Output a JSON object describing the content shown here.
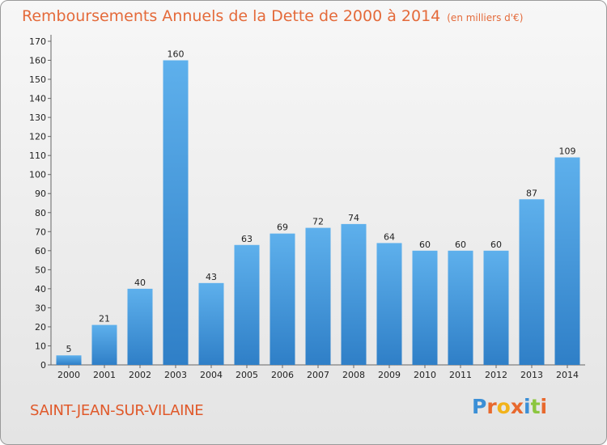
{
  "chart_data": {
    "type": "bar",
    "title": "Remboursements Annuels de la Dette de 2000 à 2014",
    "unit_note": "(en milliers d'€)",
    "categories": [
      "2000",
      "2001",
      "2002",
      "2003",
      "2004",
      "2005",
      "2006",
      "2007",
      "2008",
      "2009",
      "2010",
      "2011",
      "2012",
      "2013",
      "2014"
    ],
    "values": [
      5,
      21,
      40,
      160,
      43,
      63,
      69,
      72,
      74,
      64,
      60,
      60,
      60,
      87,
      109
    ],
    "data_labels": [
      "5",
      "21",
      "40",
      "160",
      "43",
      "63",
      "69",
      "72",
      "74",
      "64",
      "60",
      "60",
      "60",
      "87",
      "109"
    ],
    "ylim": [
      0,
      170
    ],
    "yticks": [
      0,
      10,
      20,
      30,
      40,
      50,
      60,
      70,
      80,
      90,
      100,
      110,
      120,
      130,
      140,
      150,
      160,
      170
    ],
    "grid": false,
    "xlabel": "",
    "ylabel": "",
    "bar_color": "#4e9ddf"
  },
  "footer": {
    "city": "SAINT-JEAN-SUR-VILAINE"
  },
  "logo": {
    "letters": [
      "P",
      "r",
      "o",
      "x",
      "i",
      "t",
      "i"
    ],
    "colors": [
      "#3b8fd6",
      "#e8692e",
      "#f2b31a",
      "#e8692e",
      "#3b8fd6",
      "#8cc63f",
      "#e8692e"
    ]
  }
}
